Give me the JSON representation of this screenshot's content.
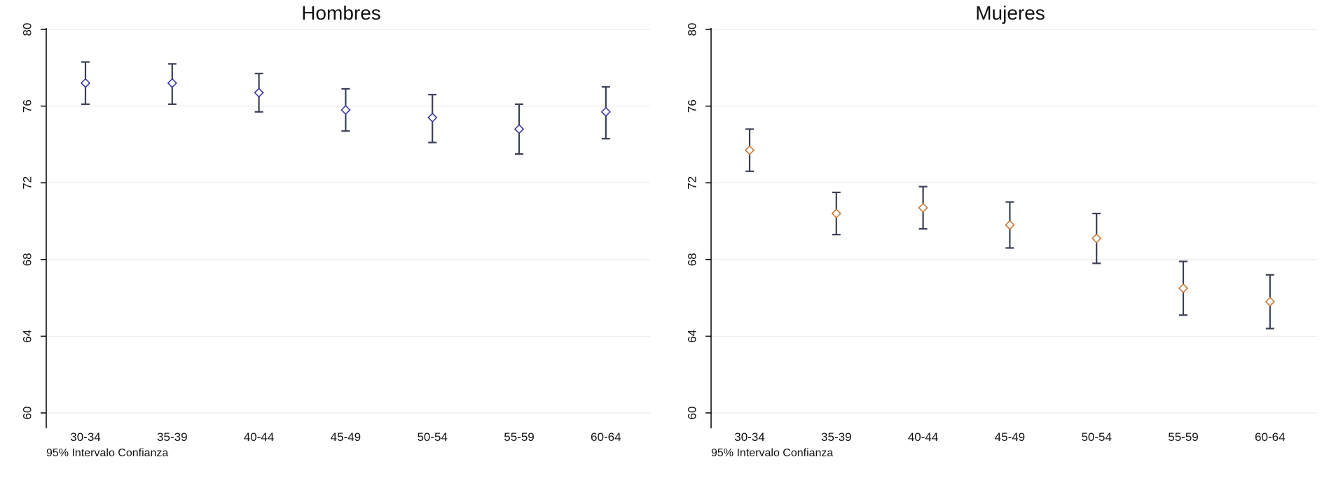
{
  "chart_data": [
    {
      "type": "scatter",
      "subtype": "errorbar",
      "title": "Hombres",
      "note": "95% Intervalo Confianza",
      "categories": [
        "30-34",
        "35-39",
        "40-44",
        "45-49",
        "50-54",
        "55-59",
        "60-64"
      ],
      "ylim": [
        60,
        80
      ],
      "yticks": [
        60,
        64,
        68,
        72,
        76,
        80
      ],
      "ytick_labels": [
        "60",
        "64",
        "68",
        "72",
        "76",
        "80"
      ],
      "grid": "horizontal",
      "marker_color": "#3a3a9a",
      "series": [
        {
          "values": [
            77.2,
            77.2,
            76.7,
            75.8,
            75.4,
            74.8,
            75.7
          ],
          "lower": [
            76.1,
            76.1,
            75.7,
            74.7,
            74.1,
            73.5,
            74.3
          ],
          "upper": [
            78.3,
            78.2,
            77.7,
            76.9,
            76.6,
            76.1,
            77.0
          ]
        }
      ]
    },
    {
      "type": "scatter",
      "subtype": "errorbar",
      "title": "Mujeres",
      "note": "95% Intervalo Confianza",
      "categories": [
        "30-34",
        "35-39",
        "40-44",
        "45-49",
        "50-54",
        "55-59",
        "60-64"
      ],
      "ylim": [
        60,
        80
      ],
      "yticks": [
        60,
        64,
        68,
        72,
        76,
        80
      ],
      "ytick_labels": [
        "60",
        "64",
        "68",
        "72",
        "76",
        "80"
      ],
      "grid": "horizontal",
      "marker_color": "#c87a3a",
      "series": [
        {
          "values": [
            73.7,
            70.4,
            70.7,
            69.8,
            69.1,
            66.5,
            65.8
          ],
          "lower": [
            72.6,
            69.3,
            69.6,
            68.6,
            67.8,
            65.1,
            64.4
          ],
          "upper": [
            74.8,
            71.5,
            71.8,
            71.0,
            70.4,
            67.9,
            67.2
          ]
        }
      ]
    }
  ]
}
